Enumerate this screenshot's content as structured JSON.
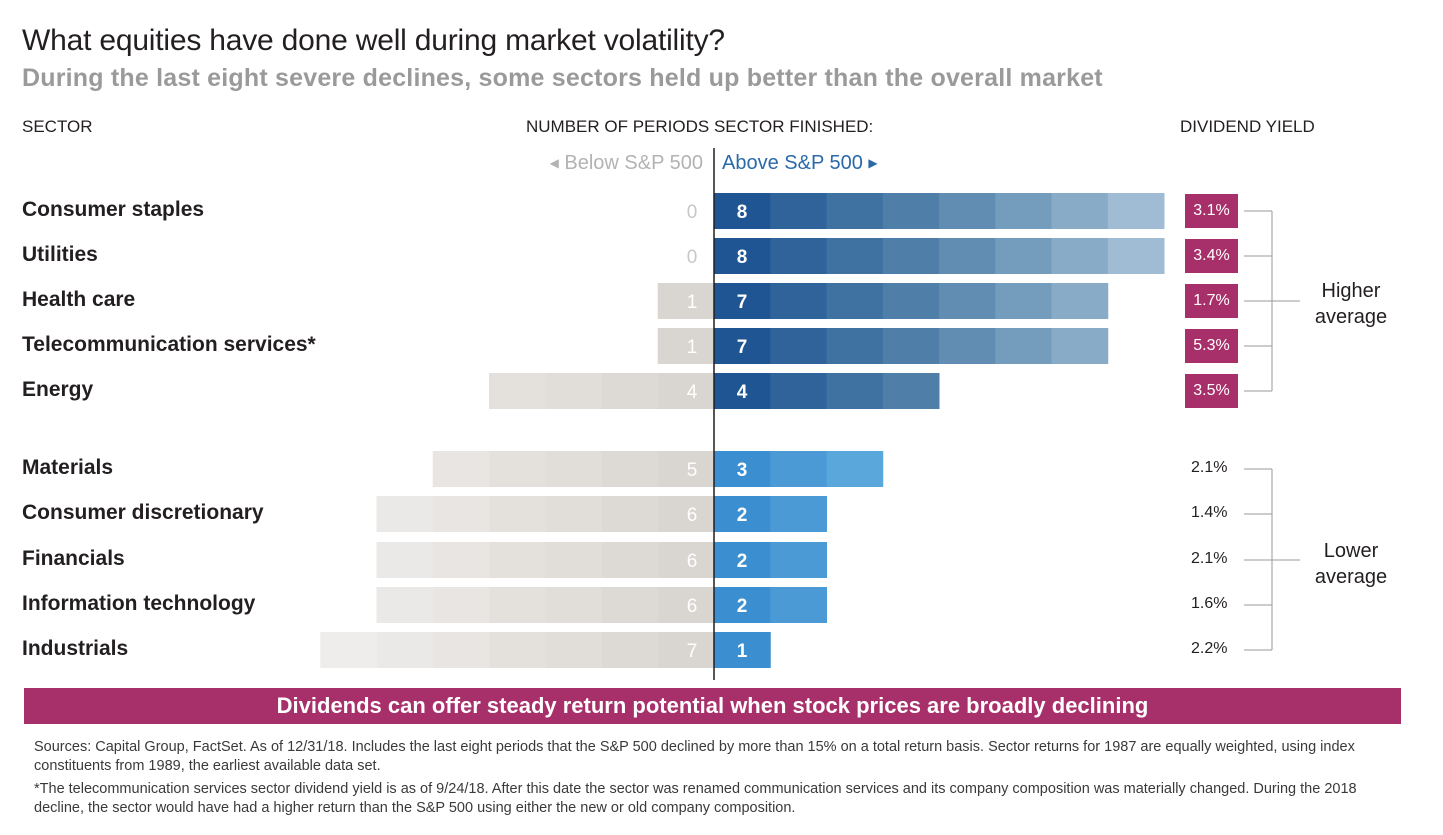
{
  "header": {
    "title": "What equities have done well during market volatility?",
    "subtitle": "During the last eight severe declines, some sectors held up better than the overall market"
  },
  "columns": {
    "sector": "SECTOR",
    "periods": "NUMBER OF PERIODS SECTOR FINISHED:",
    "yield": "DIVIDEND YIELD"
  },
  "direction": {
    "below": "Below S&P 500",
    "above": "Above S&P 500"
  },
  "groups": {
    "higher": "Higher average",
    "lower": "Lower average"
  },
  "colors": {
    "above_dark": "#1f5592",
    "above_light": "#3b8fd0",
    "below": "#d9d5d0",
    "accent": "#a8306a"
  },
  "chart_data": {
    "type": "bar",
    "categories": [
      "Consumer staples",
      "Utilities",
      "Health care",
      "Telecommunication services*",
      "Energy",
      "Materials",
      "Consumer discretionary",
      "Financials",
      "Information technology",
      "Industrials"
    ],
    "series": [
      {
        "name": "Below S&P 500",
        "values": [
          0,
          0,
          1,
          1,
          4,
          5,
          6,
          6,
          6,
          7
        ]
      },
      {
        "name": "Above S&P 500",
        "values": [
          8,
          8,
          7,
          7,
          4,
          3,
          2,
          2,
          2,
          1
        ]
      }
    ],
    "dividend_yield": [
      "3.1%",
      "3.4%",
      "1.7%",
      "5.3%",
      "3.5%",
      "2.1%",
      "1.4%",
      "2.1%",
      "1.6%",
      "2.2%"
    ],
    "yield_group": [
      "higher",
      "higher",
      "higher",
      "higher",
      "higher",
      "lower",
      "lower",
      "lower",
      "lower",
      "lower"
    ],
    "xlim": [
      -8,
      8
    ]
  },
  "banner": "Dividends can offer steady return potential when stock prices are broadly declining",
  "notes": {
    "sources": "Sources: Capital Group, FactSet. As of 12/31/18. Includes the last eight periods that the S&P 500 declined by more than 15% on a total return basis. Sector returns for 1987 are equally weighted, using index constituents from 1989, the earliest available data set.",
    "footnote": "*The telecommunication services sector dividend yield is as of 9/24/18. After this date the sector was renamed communication services and its company composition was materially changed. During the 2018 decline, the sector would have had a higher return than the S&P 500 using either the new or old company composition."
  }
}
